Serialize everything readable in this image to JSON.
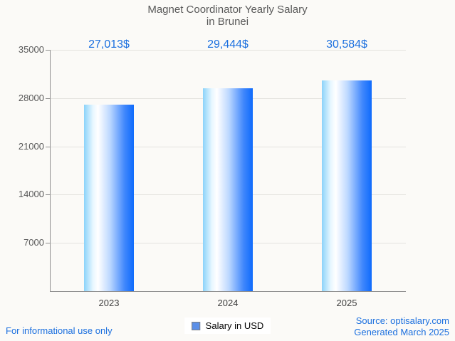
{
  "chart_data": {
    "type": "bar",
    "title": "Magnet Coordinator Yearly Salary in Brunei",
    "title_line1": "Magnet Coordinator Yearly Salary",
    "title_line2": "in Brunei",
    "categories": [
      "2023",
      "2024",
      "2025"
    ],
    "values": [
      27013,
      29444,
      30584
    ],
    "value_labels": [
      "27,013$",
      "29,444$",
      "30,584$"
    ],
    "xlabel": "",
    "ylabel": "",
    "ylim": [
      0,
      35000
    ],
    "yticks": [
      7000,
      14000,
      21000,
      28000,
      35000
    ],
    "grid": true,
    "legend_position": "bottom-center",
    "legend_label": "Salary in USD",
    "bar_gradient_left": "#8bd3fa",
    "bar_gradient_mid": "#ffffff",
    "bar_gradient_right": "#0e6bfc",
    "value_label_color": "#1a6fdf",
    "axis_color": "#8f8f8f",
    "grid_color": "#e4e3df",
    "text_color": "#595959",
    "background_color": "#fbfaf7"
  },
  "legend": {
    "label": "Salary in USD",
    "marker_color": "#5b8fe8"
  },
  "footer": {
    "disclaimer": "For informational use only",
    "source_line1": "Source: optisalary.com",
    "source_line2": "Generated March 2025"
  }
}
